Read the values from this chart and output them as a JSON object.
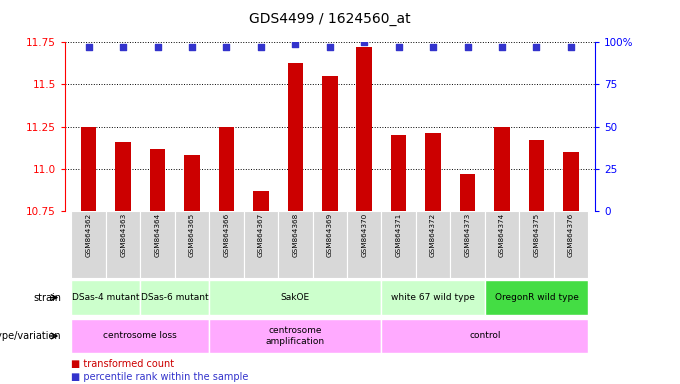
{
  "title": "GDS4499 / 1624560_at",
  "samples": [
    "GSM864362",
    "GSM864363",
    "GSM864364",
    "GSM864365",
    "GSM864366",
    "GSM864367",
    "GSM864368",
    "GSM864369",
    "GSM864370",
    "GSM864371",
    "GSM864372",
    "GSM864373",
    "GSM864374",
    "GSM864375",
    "GSM864376"
  ],
  "bar_values": [
    11.25,
    11.16,
    11.12,
    11.08,
    11.25,
    10.87,
    11.63,
    11.55,
    11.72,
    11.2,
    11.21,
    10.97,
    11.25,
    11.17,
    11.1
  ],
  "dot_values": [
    97,
    97,
    97,
    97,
    97,
    97,
    99,
    97,
    100,
    97,
    97,
    97,
    97,
    97,
    97
  ],
  "ylim_left": [
    10.75,
    11.75
  ],
  "ylim_right": [
    0,
    100
  ],
  "yticks_left": [
    10.75,
    11.0,
    11.25,
    11.5,
    11.75
  ],
  "yticks_right": [
    0,
    25,
    50,
    75,
    100
  ],
  "bar_color": "#cc0000",
  "dot_color": "#3333cc",
  "grid_color": "#000000",
  "bg_color": "#ffffff",
  "tick_bg_color": "#d8d8d8",
  "strain_defs": [
    [
      0,
      2,
      "DSas-4 mutant",
      "#ccffcc"
    ],
    [
      2,
      4,
      "DSas-6 mutant",
      "#ccffcc"
    ],
    [
      4,
      9,
      "SakOE",
      "#ccffcc"
    ],
    [
      9,
      12,
      "white 67 wild type",
      "#ccffcc"
    ],
    [
      12,
      15,
      "OregonR wild type",
      "#44dd44"
    ]
  ],
  "geno_defs": [
    [
      0,
      4,
      "centrosome loss",
      "#ffaaff"
    ],
    [
      4,
      9,
      "centrosome\namplification",
      "#ffaaff"
    ],
    [
      9,
      15,
      "control",
      "#ffaaff"
    ]
  ],
  "fig_width": 6.8,
  "fig_height": 3.84,
  "dpi": 100
}
